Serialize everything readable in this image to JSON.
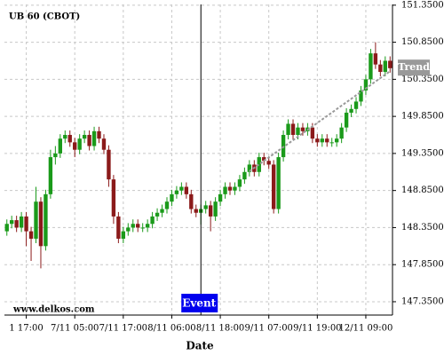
{
  "chart_data": {
    "type": "candlestick",
    "title": "UB 60 (CBOT)",
    "watermark": "www.delkos.com",
    "x_label": "Date",
    "up_color": "#1a9a1a",
    "down_color": "#8b1a1a",
    "grid": true,
    "ylim": [
      147.17,
      151.36
    ],
    "yticks": [
      {
        "value": 147.35,
        "label": "147.3500"
      },
      {
        "value": 147.85,
        "label": "147.8500"
      },
      {
        "value": 148.35,
        "label": "148.3500"
      },
      {
        "value": 148.85,
        "label": "148.8500"
      },
      {
        "value": 149.35,
        "label": "149.3500"
      },
      {
        "value": 149.85,
        "label": "149.8500"
      },
      {
        "value": 150.35,
        "label": "150.3500"
      },
      {
        "value": 150.85,
        "label": "150.8500"
      },
      {
        "value": 151.35,
        "label": "151.3500"
      }
    ],
    "categories": [
      null,
      null,
      null,
      null,
      "1 17:00",
      null,
      null,
      null,
      null,
      null,
      null,
      null,
      null,
      null,
      "7/11 05:00",
      null,
      null,
      null,
      null,
      null,
      null,
      null,
      null,
      null,
      "7/11 17:00",
      null,
      null,
      null,
      null,
      null,
      null,
      null,
      null,
      null,
      "8/11 06:00",
      null,
      null,
      null,
      null,
      null,
      null,
      null,
      null,
      null,
      "8/11 18:00",
      null,
      null,
      null,
      null,
      null,
      null,
      null,
      null,
      null,
      "9/11 07:00",
      null,
      null,
      null,
      null,
      null,
      null,
      null,
      null,
      null,
      "9/11 19:00",
      null,
      null,
      null,
      null,
      null,
      null,
      null,
      null,
      null,
      "12/11 09:00",
      null,
      null,
      null,
      null,
      null
    ],
    "open": [
      148.3,
      148.4,
      148.45,
      148.35,
      148.5,
      148.3,
      148.2,
      148.7,
      148.1,
      148.8,
      149.3,
      149.35,
      149.55,
      149.6,
      149.5,
      149.4,
      149.55,
      149.6,
      149.45,
      149.65,
      149.55,
      149.4,
      149.0,
      148.5,
      148.2,
      148.3,
      148.35,
      148.4,
      148.35,
      148.35,
      148.4,
      148.5,
      148.55,
      148.6,
      148.7,
      148.8,
      148.85,
      148.9,
      148.8,
      148.6,
      148.55,
      148.6,
      148.65,
      148.5,
      148.7,
      148.8,
      148.9,
      148.85,
      148.9,
      149.0,
      149.1,
      149.2,
      149.1,
      149.3,
      149.25,
      149.2,
      148.6,
      149.3,
      149.6,
      149.75,
      149.6,
      149.7,
      149.65,
      149.7,
      149.55,
      149.5,
      149.55,
      149.5,
      149.5,
      149.55,
      149.7,
      149.9,
      149.95,
      150.05,
      150.2,
      150.35,
      150.7,
      150.55,
      150.45,
      150.6
    ],
    "high": [
      148.46,
      148.51,
      148.51,
      148.56,
      148.56,
      148.36,
      148.9,
      148.76,
      148.86,
      149.4,
      149.45,
      149.61,
      149.66,
      149.66,
      149.56,
      149.61,
      149.66,
      149.66,
      149.71,
      149.71,
      149.61,
      149.46,
      149.06,
      148.56,
      148.36,
      148.41,
      148.46,
      148.46,
      148.41,
      148.46,
      148.56,
      148.61,
      148.66,
      148.76,
      148.86,
      148.91,
      148.96,
      148.96,
      148.86,
      148.66,
      148.66,
      148.71,
      148.71,
      148.76,
      148.86,
      148.96,
      148.96,
      148.96,
      149.06,
      149.16,
      149.26,
      149.26,
      149.36,
      149.36,
      149.31,
      149.26,
      149.36,
      149.66,
      149.81,
      149.81,
      149.76,
      149.76,
      149.76,
      149.76,
      149.61,
      149.61,
      149.61,
      149.56,
      149.61,
      149.76,
      149.96,
      150.01,
      150.11,
      150.26,
      150.41,
      150.76,
      150.85,
      150.61,
      150.66,
      150.66
    ],
    "low": [
      148.24,
      148.34,
      148.29,
      148.29,
      148.1,
      147.9,
      148.14,
      147.8,
      148.04,
      148.74,
      149.2,
      149.29,
      149.49,
      149.44,
      149.3,
      149.34,
      149.49,
      149.39,
      149.39,
      149.49,
      149.34,
      148.9,
      148.4,
      148.14,
      148.14,
      148.24,
      148.29,
      148.29,
      148.29,
      148.29,
      148.34,
      148.44,
      148.49,
      148.54,
      148.64,
      148.74,
      148.79,
      148.74,
      148.54,
      148.49,
      148.39,
      148.54,
      148.3,
      148.44,
      148.64,
      148.74,
      148.79,
      148.79,
      148.84,
      148.94,
      149.04,
      149.04,
      149.04,
      149.19,
      149.14,
      148.54,
      148.54,
      149.24,
      149.54,
      149.54,
      149.54,
      149.59,
      149.59,
      149.49,
      149.44,
      149.44,
      149.44,
      149.44,
      149.44,
      149.49,
      149.64,
      149.84,
      149.89,
      149.99,
      150.14,
      150.29,
      150.49,
      150.39,
      150.39,
      150.44
    ],
    "close": [
      148.4,
      148.45,
      148.35,
      148.5,
      148.3,
      148.2,
      148.7,
      148.1,
      148.8,
      149.3,
      149.35,
      149.55,
      149.6,
      149.5,
      149.4,
      149.55,
      149.6,
      149.45,
      149.65,
      149.55,
      149.4,
      149.0,
      148.5,
      148.2,
      148.3,
      148.35,
      148.4,
      148.35,
      148.35,
      148.4,
      148.5,
      148.55,
      148.6,
      148.7,
      148.8,
      148.85,
      148.9,
      148.8,
      148.6,
      148.55,
      148.6,
      148.65,
      148.5,
      148.7,
      148.8,
      148.9,
      148.85,
      148.9,
      149.0,
      149.1,
      149.2,
      149.1,
      149.3,
      149.25,
      149.2,
      148.6,
      149.3,
      149.6,
      149.75,
      149.6,
      149.7,
      149.65,
      149.7,
      149.55,
      149.5,
      149.55,
      149.5,
      149.5,
      149.55,
      149.7,
      149.9,
      149.95,
      150.05,
      150.2,
      150.35,
      150.7,
      150.55,
      150.45,
      150.6,
      150.5
    ],
    "event": {
      "label": "Event",
      "index": 40,
      "color": "#0000ee"
    },
    "trend": {
      "label": "Trend",
      "x": [
        50,
        79
      ],
      "y": [
        149.11,
        150.46
      ],
      "color": "#999999"
    }
  }
}
